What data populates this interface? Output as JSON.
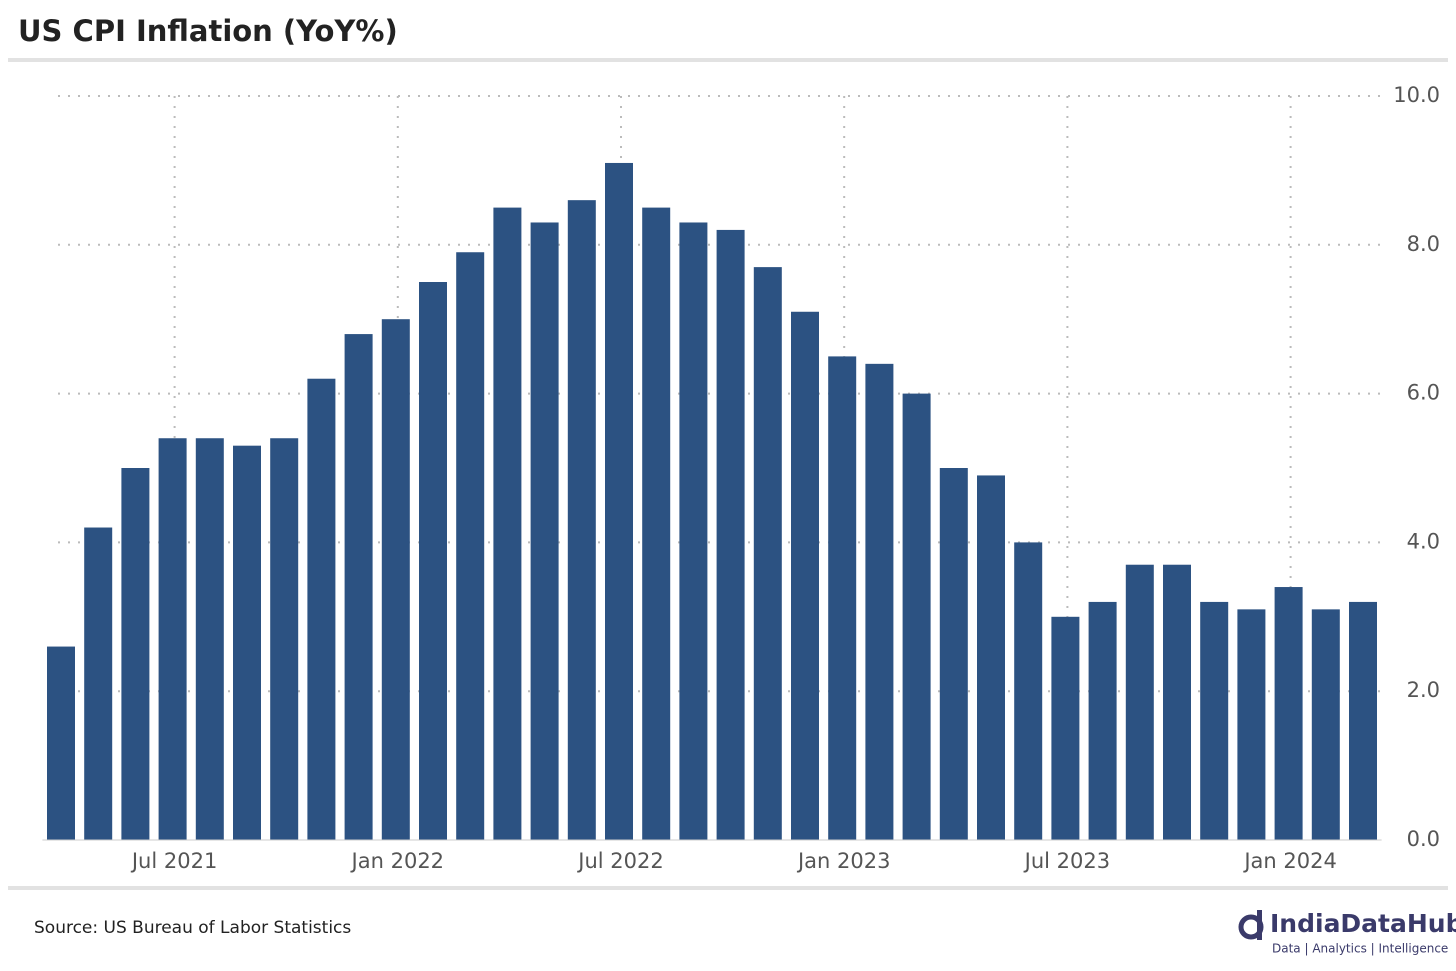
{
  "chart_data": {
    "type": "bar",
    "title": "US CPI Inflation (YoY%)",
    "categories": [
      null,
      null,
      null,
      "Jul 2021",
      null,
      null,
      null,
      null,
      null,
      "Jan 2022",
      null,
      null,
      null,
      null,
      null,
      "Jul 2022",
      null,
      null,
      null,
      null,
      null,
      "Jan 2023",
      null,
      null,
      null,
      null,
      null,
      "Jul 2023",
      null,
      null,
      null,
      null,
      null,
      "Jan 2024",
      null,
      null
    ],
    "values": [
      2.6,
      4.2,
      5.0,
      5.4,
      5.4,
      5.3,
      5.4,
      6.2,
      6.8,
      7.0,
      7.5,
      7.9,
      8.5,
      8.3,
      8.6,
      9.1,
      8.5,
      8.3,
      8.2,
      7.7,
      7.1,
      6.5,
      6.4,
      6.0,
      5.0,
      4.9,
      4.0,
      3.0,
      3.2,
      3.7,
      3.7,
      3.2,
      3.1,
      3.4,
      3.1,
      3.2
    ],
    "color": "#2c5282",
    "ylim": [
      0,
      10
    ],
    "yticks": [
      {
        "value": 0,
        "label": "0.0"
      },
      {
        "value": 2,
        "label": "2.0"
      },
      {
        "value": 4,
        "label": "4.0"
      },
      {
        "value": 6,
        "label": "6.0"
      },
      {
        "value": 8,
        "label": "8.0"
      },
      {
        "value": 10,
        "label": "10.0"
      }
    ],
    "grid": true,
    "source": "Source: US Bureau of Labor Statistics",
    "logo": {
      "name": "IndiaDataHub",
      "tagline": "Data | Analytics | Intelligence"
    }
  }
}
